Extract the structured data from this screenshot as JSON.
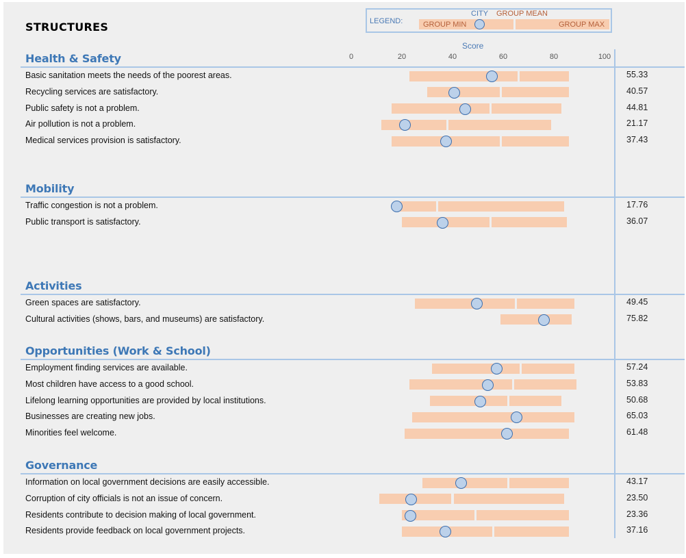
{
  "page_title": "STRUCTURES",
  "legend": {
    "label": "LEGEND:",
    "city": "CITY",
    "group_mean": "GROUP MEAN",
    "group_min": "GROUP MIN",
    "group_max": "GROUP MAX"
  },
  "colors": {
    "bar": "#f8cdb0",
    "marker_fill": "#bcd1ea",
    "marker_stroke": "#3d6fae",
    "section_title": "#3e78b6",
    "rule": "#a9c6e6"
  },
  "chart_data": {
    "type": "bar",
    "xlabel": "Score",
    "xlim": [
      0,
      100
    ],
    "ticks": [
      0,
      20,
      40,
      60,
      80,
      100
    ],
    "sections": [
      {
        "title": "Health & Safety",
        "rows": [
          {
            "label": "Basic sanitation meets the needs of the poorest areas.",
            "value_text": "55.33",
            "city": 55.33,
            "min": 23,
            "mean": 66,
            "max": 86
          },
          {
            "label": "Recycling services are satisfactory.",
            "value_text": "40.57",
            "city": 40.57,
            "min": 30,
            "mean": 59,
            "max": 86
          },
          {
            "label": "Public safety is not a problem.",
            "value_text": "44.81",
            "city": 44.81,
            "min": 16,
            "mean": 55,
            "max": 83
          },
          {
            "label": "Air pollution is not a problem.",
            "value_text": "21.17",
            "city": 21.17,
            "min": 12,
            "mean": 38,
            "max": 79
          },
          {
            "label": "Medical services provision is satisfactory.",
            "value_text": "37.43",
            "city": 37.43,
            "min": 16,
            "mean": 59,
            "max": 86
          }
        ]
      },
      {
        "title": "Mobility",
        "rows": [
          {
            "label": "Traffic congestion is not a problem.",
            "value_text": "17.76",
            "city": 17.76,
            "min": 17,
            "mean": 34,
            "max": 84
          },
          {
            "label": "Public transport is satisfactory.",
            "value_text": "36.07",
            "city": 36.07,
            "min": 20,
            "mean": 55,
            "max": 85
          }
        ]
      },
      {
        "title": "Activities",
        "rows": [
          {
            "label": "Green spaces are satisfactory.",
            "value_text": "49.45",
            "city": 49.45,
            "min": 25,
            "mean": 65,
            "max": 88
          },
          {
            "label": "Cultural activities (shows, bars, and museums) are satisfactory.",
            "value_text": "75.82",
            "city": 75.82,
            "min": 59,
            "mean": 59,
            "max": 87
          }
        ]
      },
      {
        "title": "Opportunities (Work & School)",
        "rows": [
          {
            "label": "Employment finding services are available.",
            "value_text": "57.24",
            "city": 57.24,
            "min": 32,
            "mean": 67,
            "max": 88
          },
          {
            "label": "Most children have access to a good school.",
            "value_text": "53.83",
            "city": 53.83,
            "min": 23,
            "mean": 64,
            "max": 89
          },
          {
            "label": "Lifelong learning opportunities are provided by local institutions.",
            "value_text": "50.68",
            "city": 50.68,
            "min": 31,
            "mean": 62,
            "max": 83
          },
          {
            "label": "Businesses are creating new jobs.",
            "value_text": "65.03",
            "city": 65.03,
            "min": 24,
            "mean": 24,
            "max": 88
          },
          {
            "label": "Minorities feel welcome.",
            "value_text": "61.48",
            "city": 61.48,
            "min": 21,
            "mean": 21,
            "max": 86
          }
        ]
      },
      {
        "title": "Governance",
        "rows": [
          {
            "label": "Information on local government decisions are easily accessible.",
            "value_text": "43.17",
            "city": 43.17,
            "min": 28,
            "mean": 62,
            "max": 86
          },
          {
            "label": "Corruption of city officials is not an issue of concern.",
            "value_text": "23.50",
            "city": 23.5,
            "min": 11,
            "mean": 40,
            "max": 84
          },
          {
            "label": "Residents contribute to decision making of local government.",
            "value_text": "23.36",
            "city": 23.36,
            "min": 20,
            "mean": 49,
            "max": 86
          },
          {
            "label": "Residents provide feedback on local government projects.",
            "value_text": "37.16",
            "city": 37.16,
            "min": 20,
            "mean": 56,
            "max": 86
          }
        ]
      }
    ]
  }
}
